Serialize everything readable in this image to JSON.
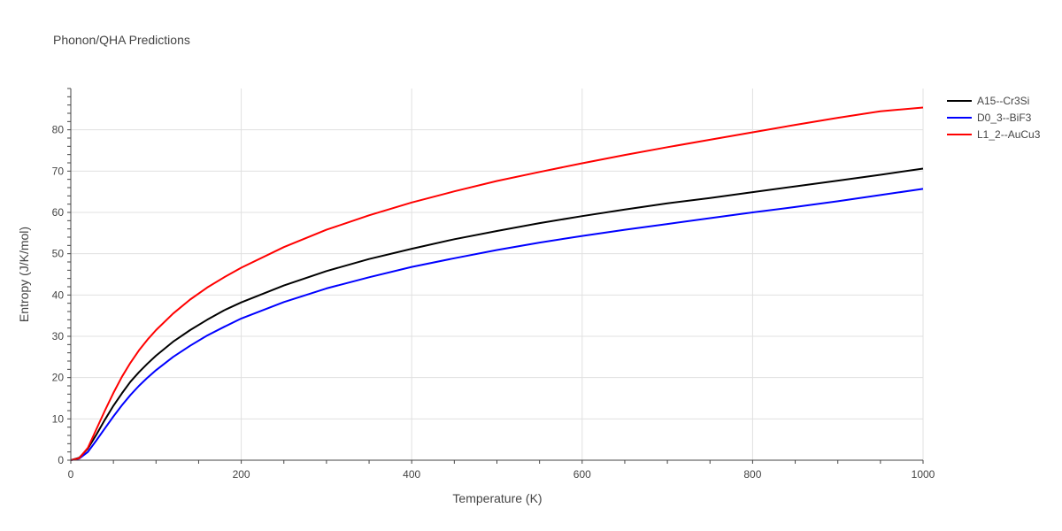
{
  "chart_data": {
    "type": "line",
    "title": "Phonon/QHA Predictions",
    "xlabel": "Temperature (K)",
    "ylabel": "Entropy (J/K/mol)",
    "xlim": [
      0,
      1000
    ],
    "ylim": [
      0,
      90
    ],
    "x_ticks": [
      0,
      200,
      400,
      600,
      800,
      1000
    ],
    "y_ticks": [
      0,
      10,
      20,
      30,
      40,
      50,
      60,
      70,
      80
    ],
    "grid": true,
    "legend_position": "top-right",
    "x": [
      0,
      10,
      20,
      30,
      40,
      50,
      60,
      70,
      80,
      90,
      100,
      120,
      140,
      160,
      180,
      200,
      250,
      300,
      350,
      400,
      450,
      500,
      550,
      600,
      650,
      700,
      750,
      800,
      850,
      900,
      950,
      1000
    ],
    "series": [
      {
        "name": "A15--Cr3Si",
        "color": "#000000",
        "values": [
          0,
          0.6,
          2.8,
          6.2,
          9.8,
          13.2,
          16.2,
          19.0,
          21.3,
          23.4,
          25.3,
          28.7,
          31.5,
          34.0,
          36.3,
          38.2,
          42.3,
          45.8,
          48.7,
          51.2,
          53.5,
          55.5,
          57.4,
          59.1,
          60.7,
          62.2,
          63.5,
          64.9,
          66.3,
          67.7,
          69.1,
          70.6
        ]
      },
      {
        "name": "D0_3--BiF3",
        "color": "#0000ff",
        "values": [
          0,
          0.4,
          2.0,
          4.8,
          7.7,
          10.6,
          13.3,
          15.8,
          18.0,
          20.0,
          21.8,
          25.0,
          27.7,
          30.2,
          32.3,
          34.3,
          38.3,
          41.6,
          44.3,
          46.8,
          48.9,
          50.9,
          52.7,
          54.3,
          55.8,
          57.2,
          58.6,
          60.0,
          61.3,
          62.7,
          64.2,
          65.7
        ]
      },
      {
        "name": "L1_2--AuCu3",
        "color": "#ff0000",
        "values": [
          0,
          0.5,
          3.0,
          7.5,
          12.0,
          16.3,
          20.2,
          23.6,
          26.6,
          29.2,
          31.5,
          35.5,
          38.9,
          41.8,
          44.3,
          46.6,
          51.6,
          55.8,
          59.3,
          62.4,
          65.1,
          67.6,
          69.8,
          71.9,
          73.9,
          75.8,
          77.6,
          79.4,
          81.2,
          82.9,
          84.5,
          85.4
        ]
      }
    ]
  }
}
